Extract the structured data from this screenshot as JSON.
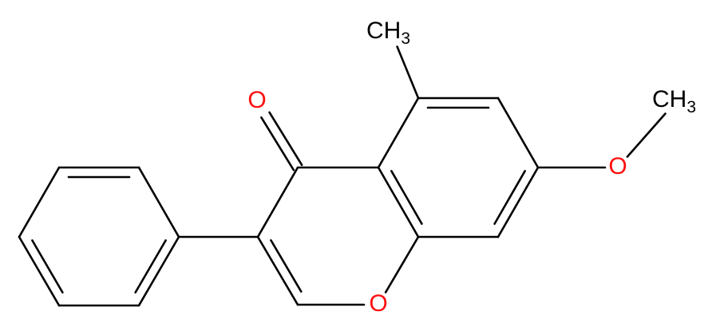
{
  "atoms": [
    {
      "label": "O"
    },
    {
      "label": "O"
    },
    {
      "label": "O"
    },
    {
      "label": "CH",
      "sub": "3"
    },
    {
      "label": "CH",
      "sub": "3"
    }
  ]
}
